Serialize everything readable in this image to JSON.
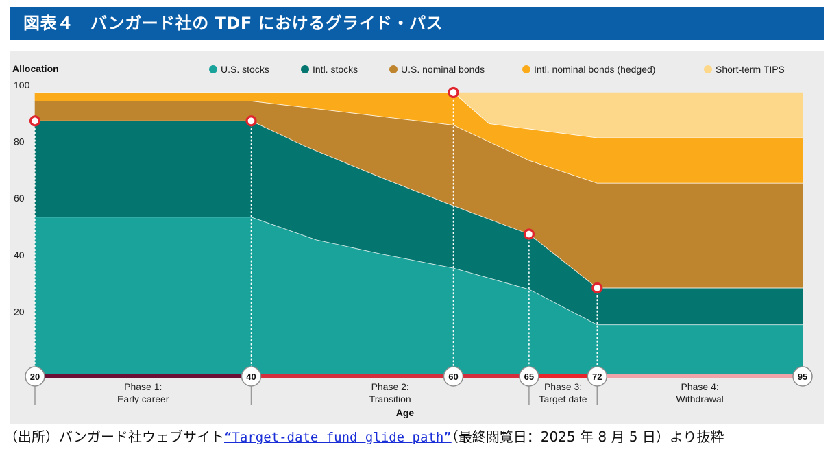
{
  "header": {
    "title": "図表４　バンガード社の TDF におけるグライド・パス"
  },
  "colors": {
    "title_bg": "#0b5ea8",
    "panel_bg": "#ececec",
    "us_stocks": "#1aa39b",
    "intl_stocks": "#05766f",
    "us_bonds": "#bf842e",
    "intl_bonds": "#fbab1a",
    "tips": "#fdd78a",
    "marker": "#e1252f",
    "phase1": "#6b1034",
    "phase2": "#d32f3c",
    "phase3": "#e8252d",
    "phase4": "#f0a4a9"
  },
  "chart_data": {
    "type": "area",
    "stacked": true,
    "ylabel": "Allocation",
    "xlabel": "Age",
    "ylim": [
      0,
      100
    ],
    "yticks": [
      20,
      40,
      60,
      80,
      100
    ],
    "x": [
      20,
      40,
      60,
      65,
      72,
      95
    ],
    "x_positions": [
      20,
      40,
      58.7,
      65.7,
      72,
      91
    ],
    "series": [
      {
        "name": "U.S. stocks",
        "color": "#1aa39b",
        "x": [
          20,
          40,
          60,
          65,
          72,
          95
        ],
        "values": [
          56,
          56,
          38,
          30.5,
          18,
          18
        ]
      },
      {
        "name": "Intl. stocks",
        "color": "#05766f",
        "x": [
          20,
          40,
          60,
          65,
          72,
          95
        ],
        "values": [
          34,
          34,
          22,
          19.5,
          13,
          13
        ]
      },
      {
        "name": "U.S. nominal bonds",
        "color": "#bf842e",
        "x": [
          20,
          40,
          60,
          65,
          72,
          95
        ],
        "values": [
          7,
          7,
          28.5,
          26,
          37,
          37
        ]
      },
      {
        "name": "Intl. nominal bonds (hedged)",
        "color": "#fbab1a",
        "x": [
          20,
          40,
          60,
          65,
          72,
          95
        ],
        "values": [
          3,
          3,
          11.5,
          13,
          16,
          16
        ]
      },
      {
        "name": "Short-term TIPS",
        "color": "#fdd78a",
        "x": [
          20,
          40,
          60,
          65,
          72,
          95
        ],
        "values": [
          0,
          0,
          0,
          11,
          16,
          16
        ]
      }
    ],
    "series_paths": {
      "top_us_stocks": [
        [
          20,
          56
        ],
        [
          40,
          56
        ],
        [
          46,
          48
        ],
        [
          52,
          43
        ],
        [
          58.7,
          38
        ],
        [
          65.7,
          30.5
        ],
        [
          72,
          18
        ],
        [
          91,
          18
        ]
      ],
      "top_intl_stocks": [
        [
          20,
          90
        ],
        [
          40,
          90
        ],
        [
          45,
          81
        ],
        [
          52,
          70
        ],
        [
          58.7,
          60
        ],
        [
          65.7,
          50
        ],
        [
          72,
          31
        ],
        [
          91,
          31
        ]
      ],
      "top_us_bonds": [
        [
          20,
          97
        ],
        [
          40,
          97
        ],
        [
          58.7,
          88.5
        ],
        [
          65.7,
          76
        ],
        [
          72,
          68
        ],
        [
          91,
          68
        ]
      ],
      "top_intl_bonds": [
        [
          20,
          100
        ],
        [
          40,
          100
        ],
        [
          58.7,
          100
        ],
        [
          62,
          89
        ],
        [
          72,
          84
        ],
        [
          91,
          84
        ]
      ]
    },
    "markers": [
      {
        "age": 20,
        "value": 90
      },
      {
        "age": 40,
        "value": 90
      },
      {
        "age": 60,
        "value": 100
      },
      {
        "age": 65,
        "value": 50
      },
      {
        "age": 72,
        "value": 31
      }
    ],
    "age_labels": [
      "20",
      "40",
      "60",
      "65",
      "72",
      "95"
    ],
    "phases": [
      {
        "line1": "Phase 1:",
        "line2": "Early career",
        "from": 20,
        "to": 40,
        "color": "#6b1034"
      },
      {
        "line1": "Phase 2:",
        "line2": "Transition",
        "from": 40,
        "to": 65,
        "color": "#d32f3c"
      },
      {
        "line1": "Phase 3:",
        "line2": "Target date",
        "from": 65,
        "to": 72,
        "color": "#e8252d"
      },
      {
        "line1": "Phase 4:",
        "line2": "Withdrawal",
        "from": 72,
        "to": 95,
        "color": "#f0a4a9"
      }
    ],
    "legend": [
      {
        "label": "U.S. stocks",
        "color": "#1aa39b"
      },
      {
        "label": "Intl. stocks",
        "color": "#05766f"
      },
      {
        "label": "U.S. nominal bonds",
        "color": "#bf842e"
      },
      {
        "label": "Intl. nominal bonds (hedged)",
        "color": "#fbab1a"
      },
      {
        "label": "Short-term TIPS",
        "color": "#fdd78a"
      }
    ]
  },
  "source": {
    "prefix": "（出所）バンガード社ウェブサイト",
    "link_text": "“Target-date fund glide path”",
    "suffix": "（最終閲覧日：2025 年 8 月 5 日）より抜粋"
  }
}
